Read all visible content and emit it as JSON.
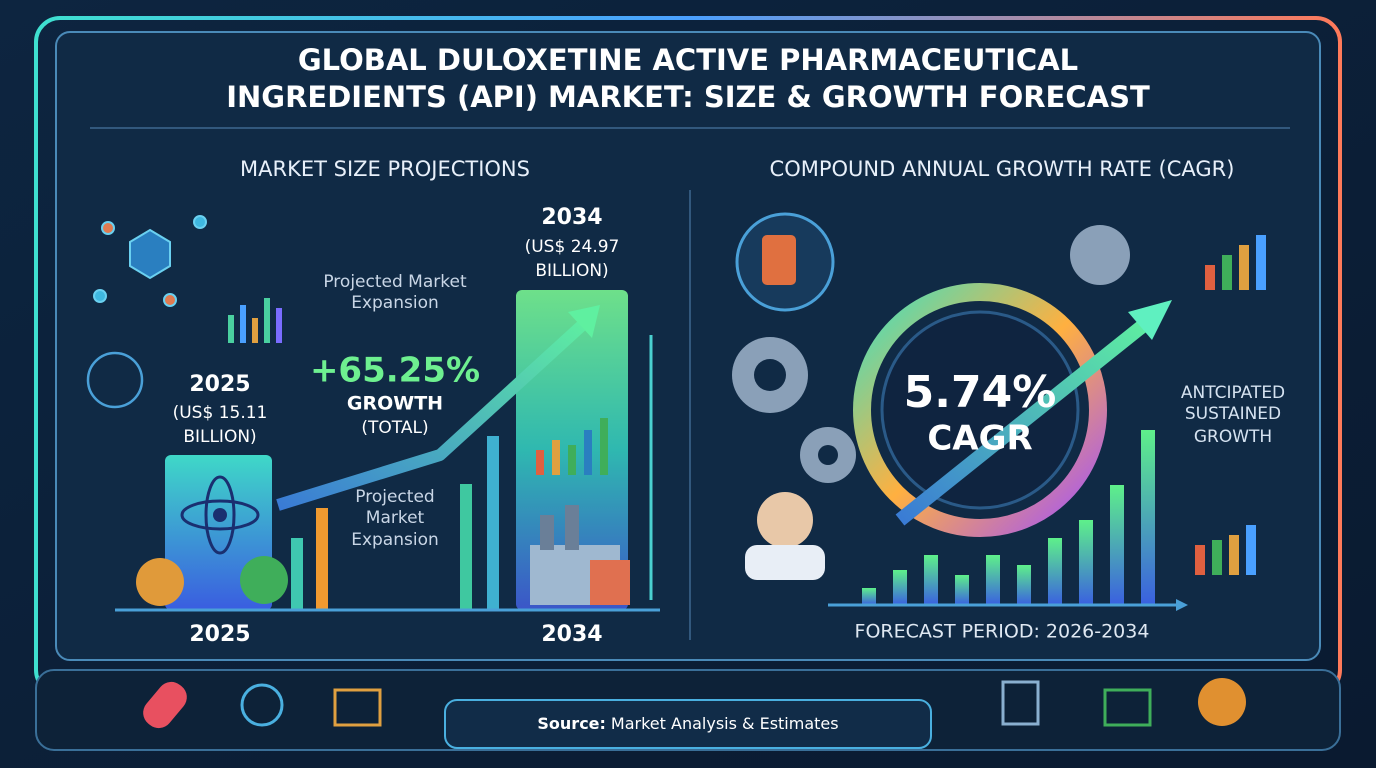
{
  "header": {
    "title_lines": [
      "GLOBAL DULOXETINE ACTIVE PHARMACEUTICAL",
      "INGREDIENTS (API) MARKET: SIZE & GROWTH FORECAST"
    ]
  },
  "left_panel": {
    "heading": "MARKET SIZE PROJECTIONS",
    "start": {
      "year": "2025",
      "value_lines": [
        "(US$ 15.11",
        "BILLION)"
      ],
      "axis_label": "2025"
    },
    "end": {
      "year": "2034",
      "value_lines": [
        "(US$ 24.97",
        "BILLION)"
      ],
      "axis_label": "2034"
    },
    "top_note_lines": [
      "Projected Market",
      "Expansion"
    ],
    "growth": {
      "value": "+65.25%",
      "lines": [
        "GROWTH",
        "(TOTAL)"
      ]
    },
    "bottom_note_lines": [
      "Projected",
      "Market",
      "Expansion"
    ]
  },
  "right_panel": {
    "heading": "COMPOUND ANNUAL GROWTH RATE (CAGR)",
    "cagr_value": "5.74%",
    "cagr_label": "CAGR",
    "side_note_lines": [
      "ANTCIPATED",
      "SUSTAINED",
      "GROWTH"
    ],
    "footer": "FORECAST PERIOD: 2026-2034"
  },
  "footer": {
    "source_label": "Source:",
    "source_text": "Market Analysis & Estimates"
  }
}
